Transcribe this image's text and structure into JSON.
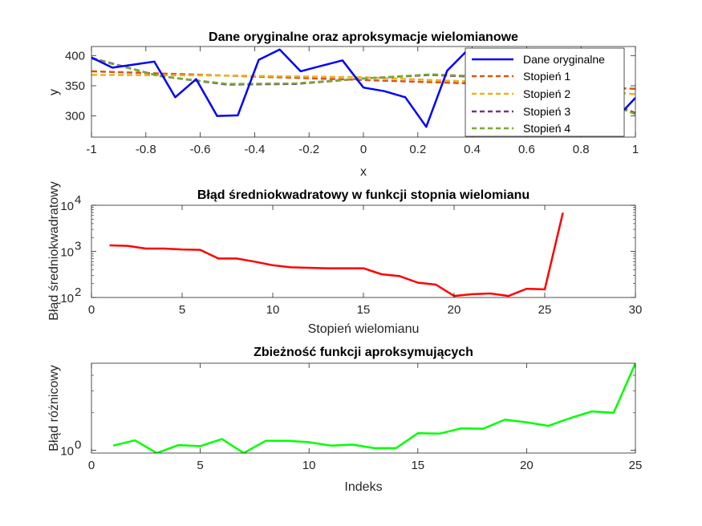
{
  "chart_data": [
    {
      "type": "line",
      "title": "Dane oryginalne oraz aproksymacje wielomianowe",
      "xlabel": "x",
      "ylabel": "y",
      "xlim": [
        -1,
        1
      ],
      "ylim": [
        265,
        415
      ],
      "xticks": [
        "-1",
        "-0.8",
        "-0.6",
        "-0.4",
        "-0.2",
        "0",
        "0.2",
        "0.4",
        "0.6",
        "0.8",
        "1"
      ],
      "yticks": [
        "300",
        "350",
        "400"
      ],
      "legend_position": "top-right",
      "series": [
        {
          "name": "Dane oryginalne",
          "color": "#0000ff",
          "style": "solid",
          "x": [
            -1,
            -0.923,
            -0.846,
            -0.769,
            -0.692,
            -0.615,
            -0.538,
            -0.462,
            -0.385,
            -0.308,
            -0.231,
            -0.154,
            -0.077,
            0,
            0.077,
            0.154,
            0.231,
            0.308,
            0.385,
            0.462,
            0.538,
            0.615,
            0.692,
            0.769,
            0.846,
            0.923,
            1
          ],
          "y": [
            397,
            380,
            385,
            390,
            331,
            361,
            300,
            301,
            393,
            410,
            374,
            383,
            392,
            347,
            341,
            331,
            282,
            375,
            410,
            405,
            398,
            392,
            372,
            340,
            320,
            293,
            330
          ]
        },
        {
          "name": "Stopień 1",
          "color": "#d95319",
          "style": "dashed",
          "x": [
            -1,
            1
          ],
          "y": [
            374,
            345
          ]
        },
        {
          "name": "Stopień 2",
          "color": "#edb120",
          "style": "dashed",
          "x": [
            -1,
            -0.5,
            0,
            0.5,
            1
          ],
          "y": [
            368,
            367,
            364,
            355,
            336
          ]
        },
        {
          "name": "Stopień 3",
          "color": "#7e2f8e",
          "style": "dashed",
          "x": [
            -1,
            -0.75,
            -0.5,
            -0.25,
            0,
            0.25,
            0.5,
            0.75,
            1
          ],
          "y": [
            396,
            366,
            352,
            353,
            362,
            368,
            363,
            347,
            305
          ]
        },
        {
          "name": "Stopień 4",
          "color": "#77ac30",
          "style": "dashed",
          "x": [
            -1,
            -0.75,
            -0.5,
            -0.25,
            0,
            0.25,
            0.5,
            0.75,
            1
          ],
          "y": [
            395,
            366,
            353,
            354,
            362,
            369,
            364,
            347,
            303
          ]
        }
      ]
    },
    {
      "type": "line",
      "title": "Błąd średniokwadratowy w funkcji stopnia wielomianu",
      "xlabel": "Stopień wielomianu",
      "ylabel": "Błąd średniokwadratowy",
      "yscale": "log",
      "xlim": [
        0,
        30
      ],
      "ylim": [
        100,
        10000
      ],
      "xticks": [
        "0",
        "5",
        "10",
        "15",
        "20",
        "25",
        "30"
      ],
      "yticks": [
        {
          "base": "10",
          "exp": "2"
        },
        {
          "base": "10",
          "exp": "3"
        },
        {
          "base": "10",
          "exp": "4"
        }
      ],
      "series": [
        {
          "color": "#ff0000",
          "x": [
            1,
            2,
            3,
            4,
            5,
            6,
            7,
            8,
            9,
            10,
            11,
            12,
            13,
            14,
            15,
            16,
            17,
            18,
            19,
            20,
            21,
            22,
            23,
            24,
            25,
            26
          ],
          "y": [
            1350,
            1320,
            1150,
            1150,
            1100,
            1080,
            700,
            700,
            600,
            500,
            450,
            440,
            430,
            430,
            430,
            320,
            290,
            210,
            190,
            108,
            118,
            122,
            108,
            155,
            150,
            6900
          ]
        }
      ]
    },
    {
      "type": "line",
      "title": "Zbieżność funkcji aproksymujących",
      "xlabel": "Indeks",
      "ylabel": "Błąd różnicowy",
      "yscale": "log",
      "xlim": [
        0,
        25
      ],
      "ylim": [
        0.95,
        5
      ],
      "xticks": [
        "0",
        "5",
        "10",
        "15",
        "20",
        "25"
      ],
      "yticks": [
        {
          "base": "10",
          "exp": "0"
        }
      ],
      "series": [
        {
          "color": "#00ff00",
          "x": [
            1,
            2,
            3,
            4,
            5,
            6,
            7,
            8,
            9,
            10,
            11,
            12,
            13,
            14,
            15,
            16,
            17,
            18,
            19,
            20,
            21,
            22,
            23,
            24,
            25
          ],
          "y": [
            1.09,
            1.2,
            0.95,
            1.1,
            1.08,
            1.23,
            0.95,
            1.19,
            1.19,
            1.16,
            1.09,
            1.11,
            1.04,
            1.04,
            1.37,
            1.36,
            1.5,
            1.49,
            1.76,
            1.68,
            1.57,
            1.81,
            2.05,
            2.0,
            5.0
          ]
        }
      ]
    }
  ]
}
